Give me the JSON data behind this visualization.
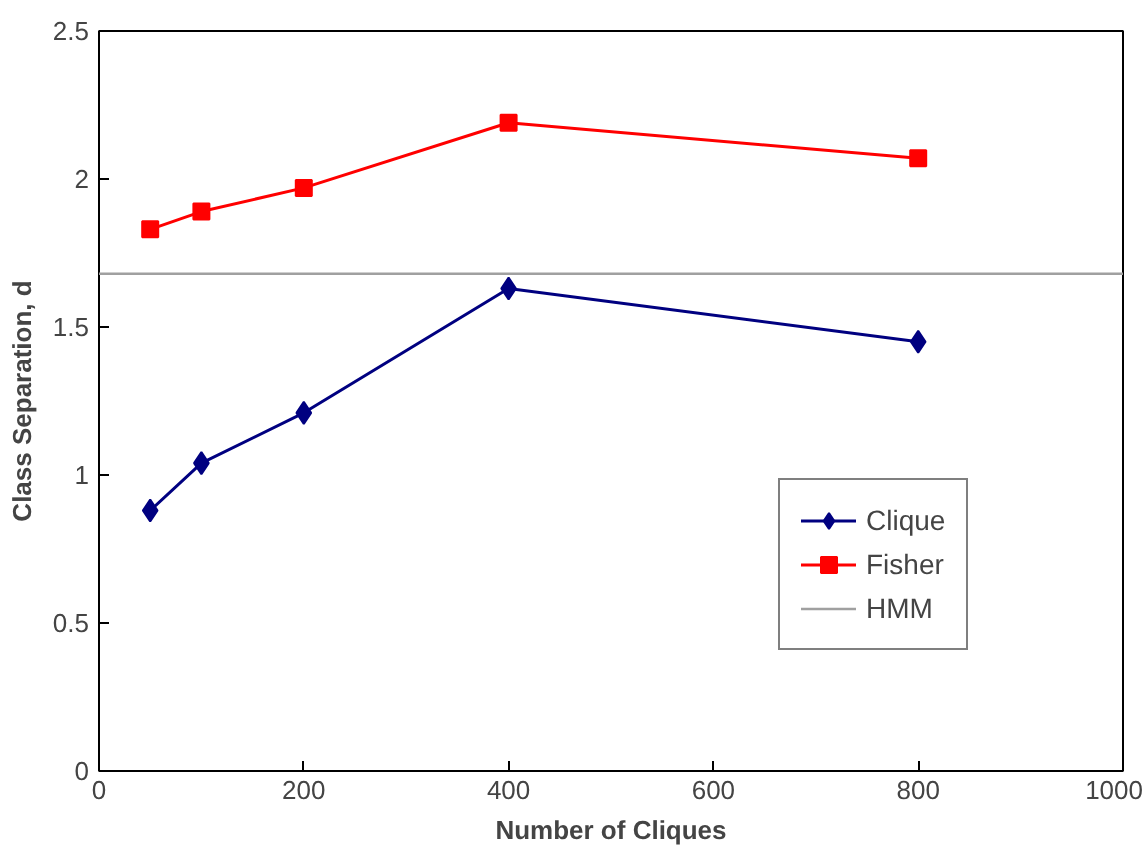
{
  "chart_data": {
    "type": "line",
    "xlabel": "Number of Cliques",
    "ylabel": "Class Separation, d",
    "x": [
      50,
      100,
      200,
      400,
      800
    ],
    "series": [
      {
        "name": "Clique",
        "color": "#000080",
        "marker": "diamond",
        "values": [
          0.88,
          1.04,
          1.21,
          1.63,
          1.45
        ]
      },
      {
        "name": "Fisher",
        "color": "#ff0000",
        "marker": "square",
        "values": [
          1.83,
          1.89,
          1.97,
          2.19,
          2.07
        ]
      }
    ],
    "ref_lines": [
      {
        "axis": "y",
        "value": 1.68,
        "label": "HMM",
        "color": "#a0a0a0"
      }
    ],
    "xlim": [
      0,
      1000
    ],
    "xticks": [
      0,
      200,
      400,
      600,
      800,
      1000
    ],
    "ylim": [
      0,
      2.5
    ],
    "yticks": [
      0,
      0.5,
      1,
      1.5,
      2,
      2.5
    ],
    "grid": false,
    "legend": "right",
    "line_style": "solid"
  }
}
